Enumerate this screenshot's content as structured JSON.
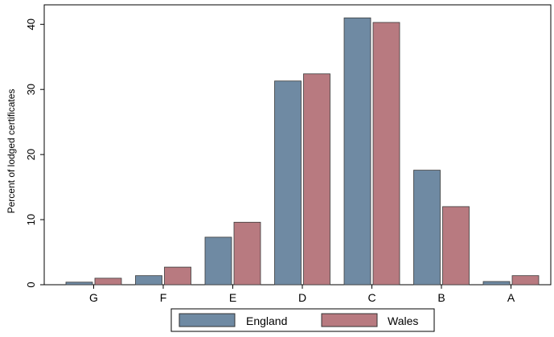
{
  "chart_data": {
    "type": "bar",
    "title": "",
    "xlabel": "",
    "ylabel": "Percent of lodged certificates",
    "categories": [
      "G",
      "F",
      "E",
      "D",
      "C",
      "B",
      "A"
    ],
    "series": [
      {
        "name": "England",
        "color": "#6f8aa3",
        "values": [
          0.4,
          1.4,
          7.3,
          31.3,
          41.0,
          17.6,
          0.5
        ]
      },
      {
        "name": "Wales",
        "color": "#b87a80",
        "values": [
          1.0,
          2.7,
          9.6,
          32.4,
          40.3,
          12.0,
          1.4
        ]
      }
    ],
    "ylim": [
      0,
      43
    ],
    "yticks": [
      0,
      10,
      20,
      30,
      40
    ],
    "grid": false,
    "legend_position": "bottom"
  }
}
